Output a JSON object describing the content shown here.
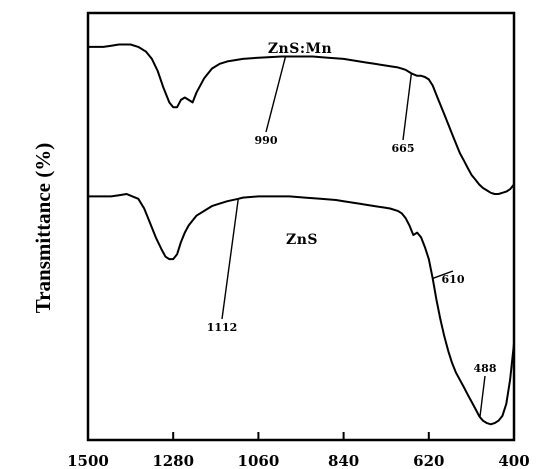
{
  "chart_data": {
    "type": "line",
    "ylabel": "Transmittance (%)",
    "xlabel": "",
    "xlim": [
      1500,
      400
    ],
    "x_reversed": true,
    "x_ticks": [
      1500,
      1280,
      1060,
      840,
      620,
      400
    ],
    "y_ticks_shown": false,
    "grid": false,
    "series": [
      {
        "name": "ZnS:Mn",
        "x": [
          1500,
          1480,
          1460,
          1440,
          1420,
          1400,
          1390,
          1370,
          1350,
          1335,
          1320,
          1305,
          1290,
          1280,
          1270,
          1260,
          1250,
          1240,
          1230,
          1220,
          1200,
          1180,
          1160,
          1140,
          1120,
          1100,
          1060,
          1000,
          960,
          920,
          880,
          840,
          820,
          800,
          780,
          760,
          740,
          720,
          700,
          690,
          680,
          665,
          650,
          640,
          630,
          620,
          610,
          600,
          590,
          580,
          570,
          560,
          550,
          540,
          530,
          520,
          510,
          500,
          490,
          480,
          470,
          460,
          450,
          440,
          430,
          420,
          410,
          400
        ],
        "y": [
          93,
          93,
          93,
          93.5,
          94,
          94,
          94,
          93,
          91,
          88,
          83,
          76,
          70,
          68,
          68,
          71,
          72,
          71,
          70,
          74,
          80,
          84,
          86,
          87,
          87.5,
          88,
          88.5,
          89,
          89,
          89,
          88.5,
          88,
          87.5,
          87,
          86.5,
          86,
          85.5,
          85,
          84.5,
          84,
          83.5,
          82,
          81,
          81,
          80.5,
          79.5,
          77,
          73,
          69,
          65,
          61,
          57,
          53,
          49,
          46,
          43,
          40,
          38,
          36,
          34.5,
          33.5,
          32.5,
          32,
          32,
          32.5,
          33,
          34,
          36
        ]
      },
      {
        "name": "ZnS",
        "x": [
          1500,
          1480,
          1460,
          1440,
          1420,
          1400,
          1385,
          1370,
          1355,
          1340,
          1325,
          1310,
          1300,
          1290,
          1280,
          1270,
          1260,
          1250,
          1240,
          1220,
          1200,
          1180,
          1160,
          1140,
          1112,
          1100,
          1060,
          1020,
          980,
          940,
          900,
          860,
          840,
          800,
          780,
          760,
          740,
          720,
          700,
          690,
          680,
          670,
          660,
          650,
          640,
          630,
          620,
          610,
          600,
          590,
          580,
          570,
          560,
          550,
          540,
          530,
          520,
          510,
          500,
          490,
          488,
          480,
          470,
          460,
          450,
          440,
          430,
          420,
          410,
          400
        ],
        "y": [
          31,
          31,
          31,
          31,
          31.5,
          32,
          31,
          30,
          26,
          20,
          14,
          9,
          6,
          5,
          5,
          7,
          12,
          16,
          19,
          23,
          25,
          27,
          28,
          29,
          30,
          30.5,
          31,
          31,
          31,
          30.5,
          30,
          29.5,
          29,
          28,
          27.5,
          27,
          26.5,
          26,
          25,
          24,
          22,
          19,
          15,
          16,
          14,
          10,
          5,
          -3,
          -12,
          -20,
          -27,
          -33,
          -38,
          -42,
          -45,
          -48,
          -51,
          -54,
          -57,
          -60,
          -60.5,
          -62,
          -63,
          -63.5,
          -63,
          -62,
          -60,
          -55,
          -45,
          -30
        ]
      }
    ],
    "annotations": [
      {
        "text": "990",
        "series": "ZnS:Mn",
        "x": 990
      },
      {
        "text": "665",
        "series": "ZnS:Mn",
        "x": 665
      },
      {
        "text": "1112",
        "series": "ZnS",
        "x": 1112
      },
      {
        "text": "610",
        "series": "ZnS",
        "x": 610
      },
      {
        "text": "488",
        "series": "ZnS",
        "x": 488
      }
    ]
  }
}
